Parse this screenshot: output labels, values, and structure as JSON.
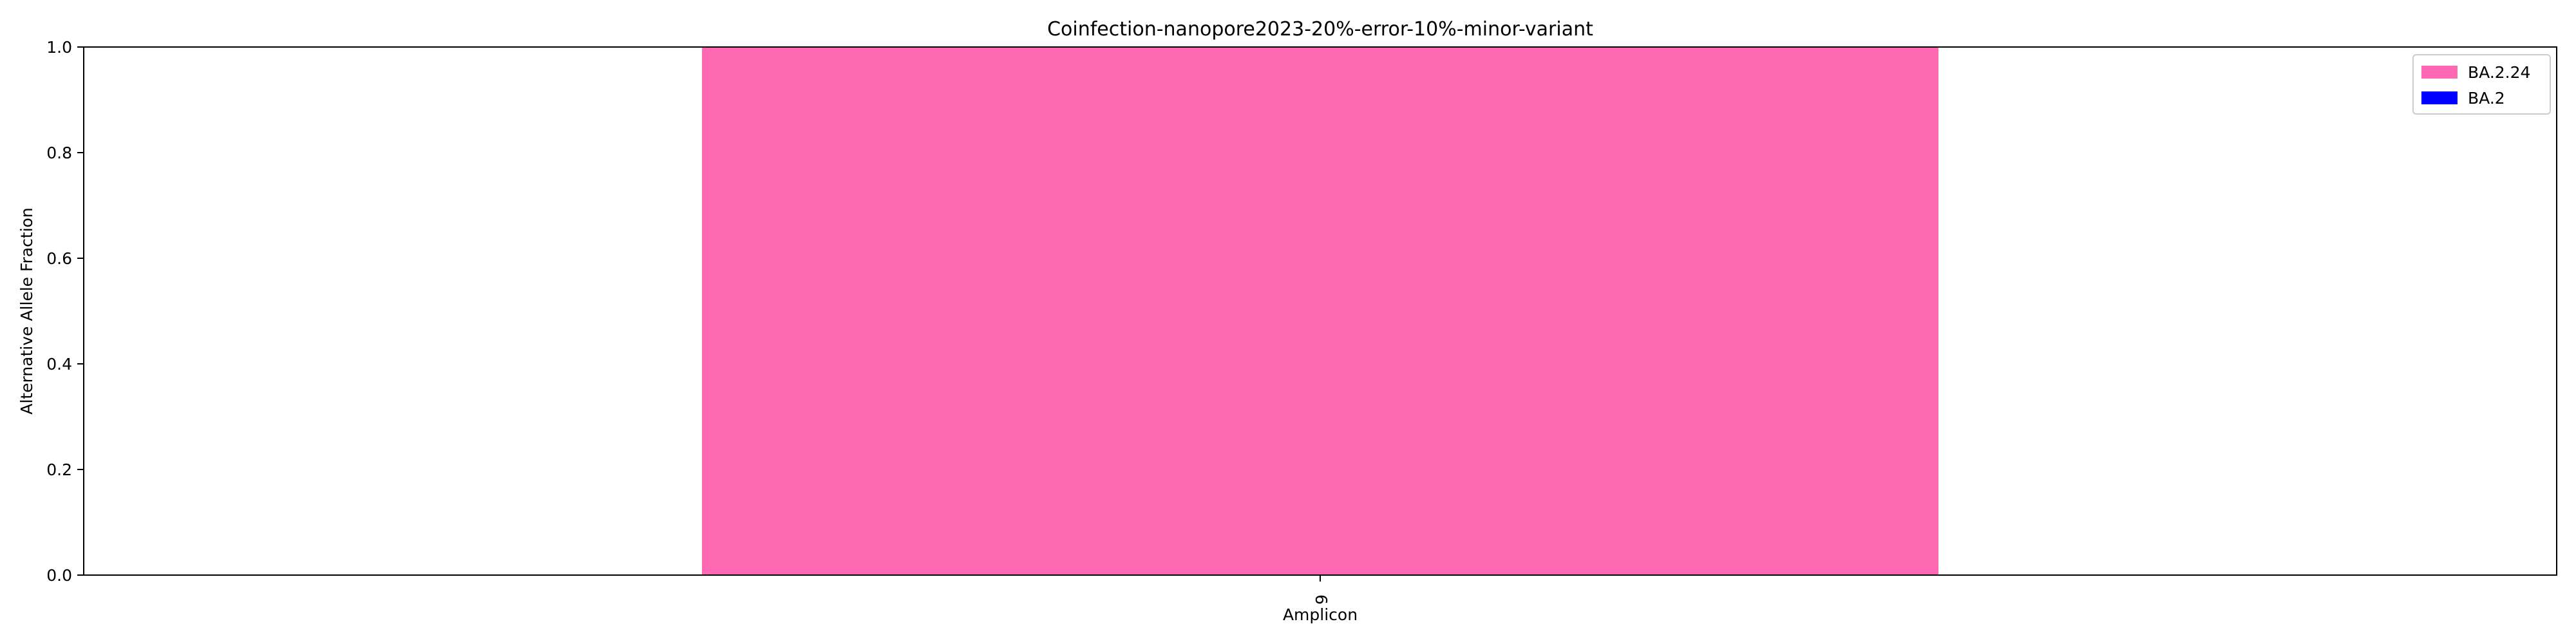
{
  "chart_data": {
    "type": "bar",
    "title": "Coinfection-nanopore2023-20%-error-10%-minor-variant",
    "xlabel": "Amplicon",
    "ylabel": "Alternative Allele Fraction",
    "ylim": [
      0,
      1
    ],
    "yticks": [
      "0.0",
      "0.2",
      "0.4",
      "0.6",
      "0.8",
      "1.0"
    ],
    "categories": [
      "6"
    ],
    "stacked": true,
    "series": [
      {
        "name": "BA.2.24",
        "color": "#ff69b4",
        "values": [
          1.0
        ]
      },
      {
        "name": "BA.2",
        "color": "#0000ff",
        "values": [
          0.0
        ]
      }
    ],
    "legend_position": "top-right",
    "grid": false
  }
}
